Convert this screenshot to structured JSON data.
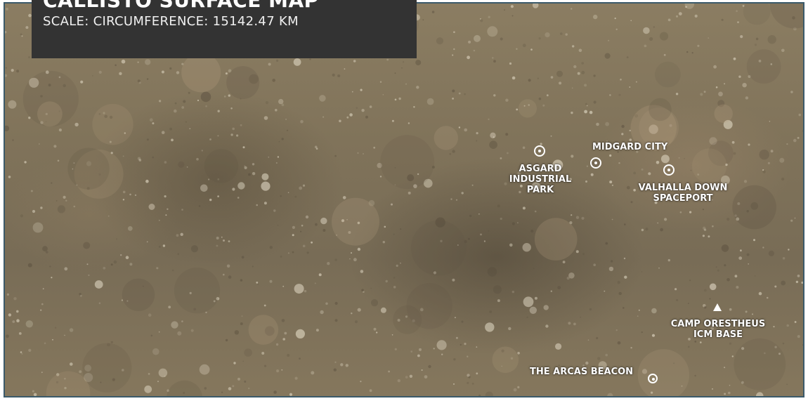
{
  "header": {
    "title": "CALLISTO SURFACE MAP",
    "scale": "SCALE: CIRCUMFERENCE: 15142.47 KM"
  },
  "locations": {
    "asgard": {
      "line1": "ASGARD",
      "line2": "INDUSTRIAL",
      "line3": "PARK",
      "marker": "circle-target"
    },
    "midgard": {
      "line1": "MIDGARD CITY",
      "marker": "circle-target"
    },
    "valhalla": {
      "line1": "VALHALLA DOWN",
      "line2": "SPACEPORT",
      "marker": "circle-target"
    },
    "camp": {
      "line1": "CAMP ORESTHEUS",
      "line2": "ICM BASE",
      "marker": "triangle"
    },
    "arcas": {
      "line1": "THE ARCAS BEACON",
      "marker": "circle-target"
    }
  },
  "colors": {
    "panel_bg": "#333333",
    "map_surface": "#80735a",
    "border": "#3b5a6a",
    "label_text": "#ffffff"
  }
}
